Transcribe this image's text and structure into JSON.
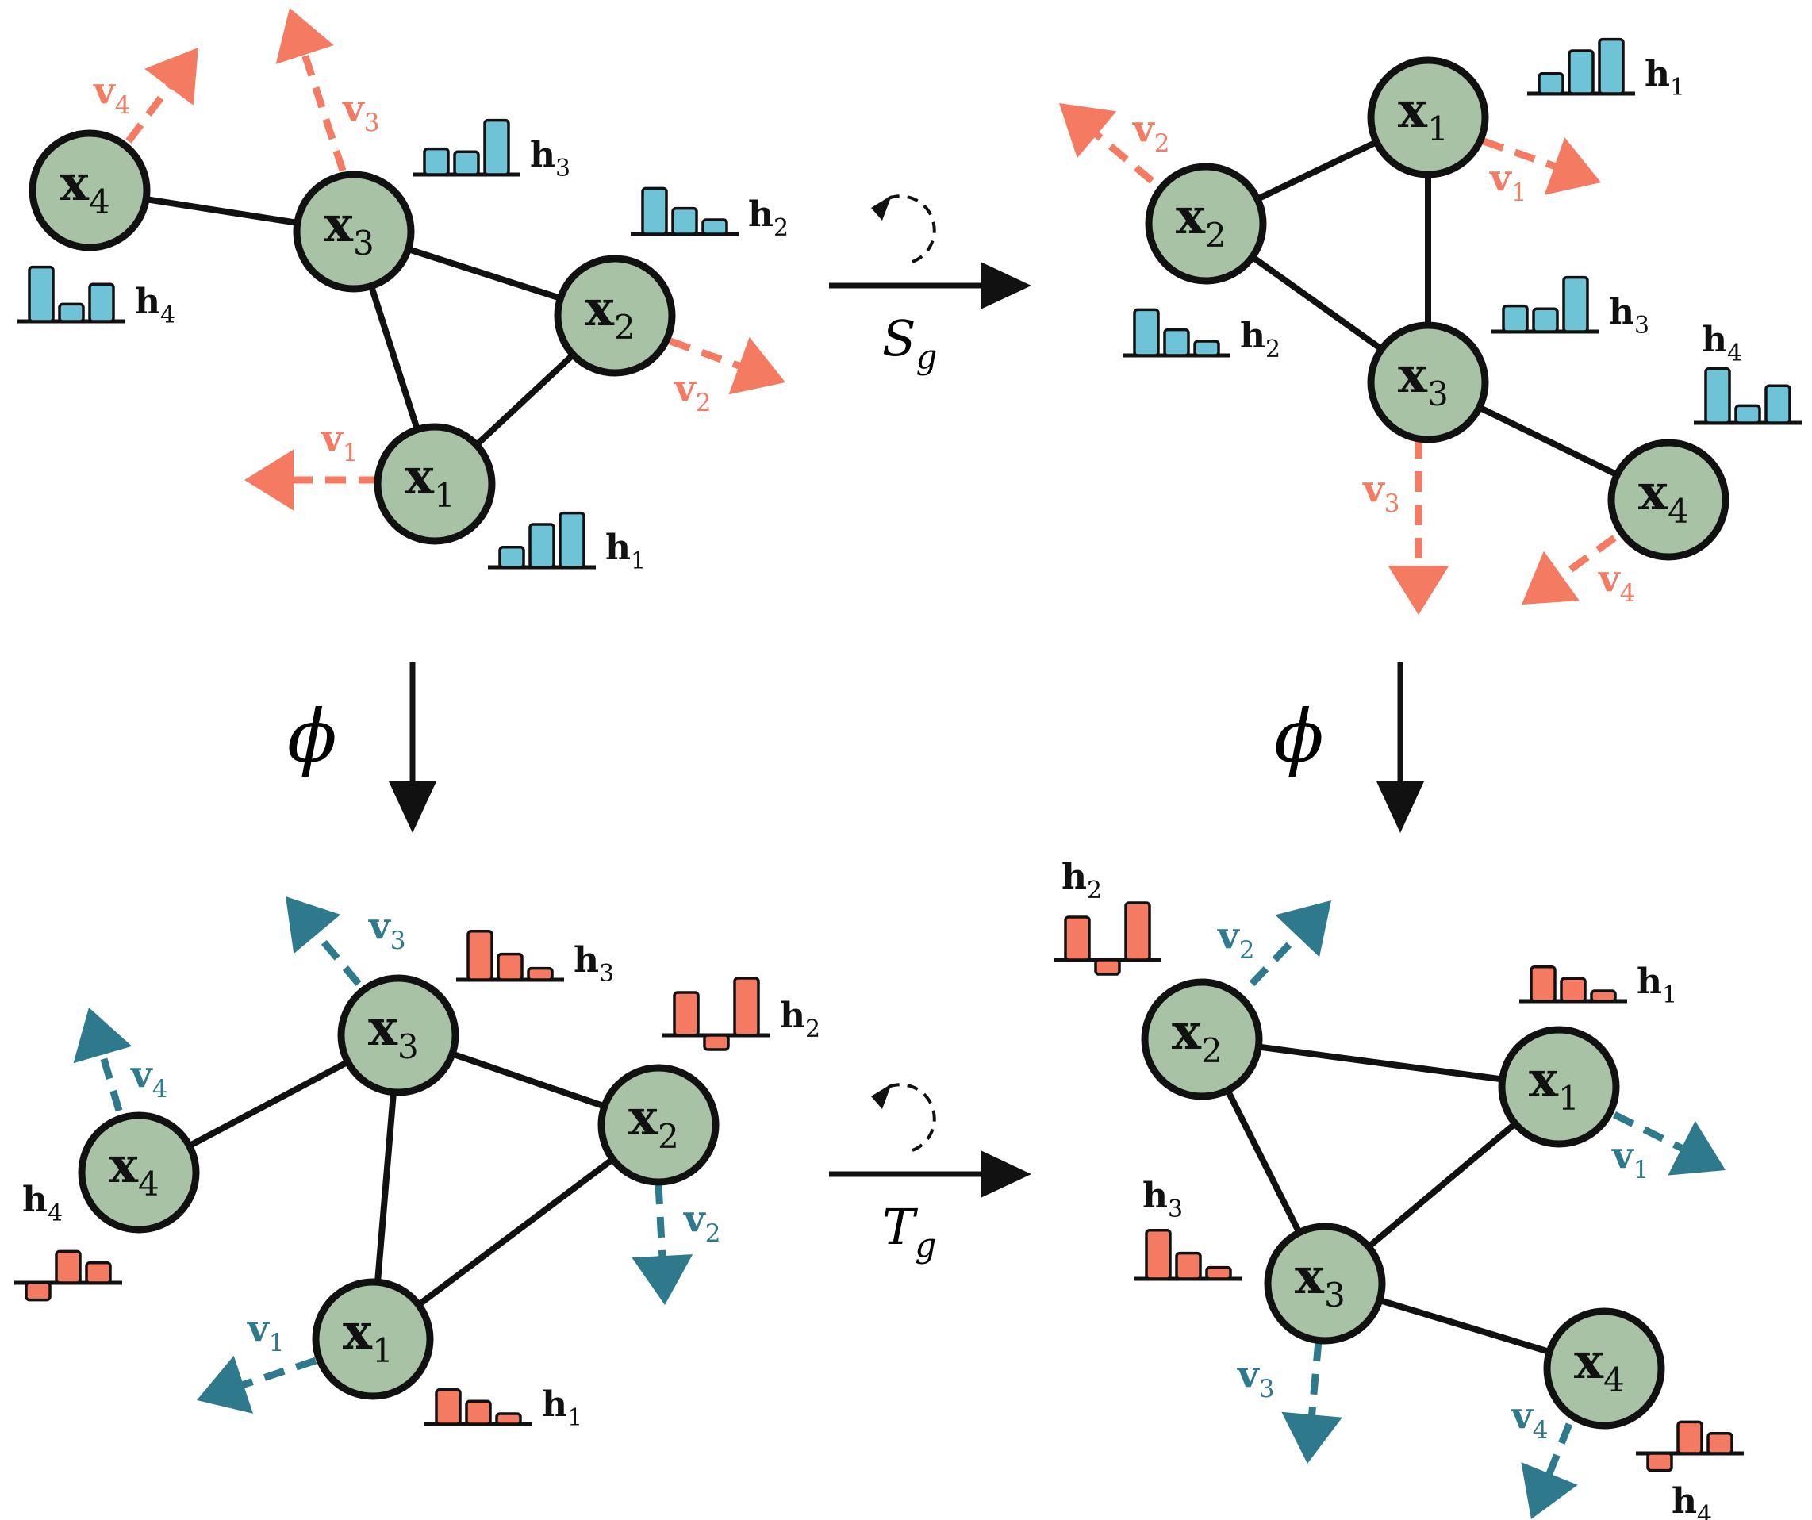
{
  "colors": {
    "node_fill": "#a8c2a5",
    "input_vector": "#f47a62",
    "output_vector": "#2e7a8c",
    "input_hist": "#6ec4d6",
    "output_hist": "#f47a62",
    "edge": "#111111"
  },
  "transforms": {
    "input": "S",
    "input_sub": "g",
    "output": "T",
    "output_sub": "g",
    "map": "ϕ"
  },
  "labels": {
    "node_base": "x",
    "vector_base": "v",
    "hist_base": "h"
  },
  "panels": [
    {
      "id": "input-original",
      "vector_color": "input_vector",
      "hist_color": "input_hist",
      "nodes": [
        {
          "i": "1",
          "hist": [
            0.35,
            0.75,
            0.95
          ]
        },
        {
          "i": "2",
          "hist": [
            0.8,
            0.45,
            0.25
          ]
        },
        {
          "i": "3",
          "hist": [
            0.45,
            0.4,
            0.95
          ]
        },
        {
          "i": "4",
          "hist": [
            0.95,
            0.3,
            0.65
          ]
        }
      ]
    },
    {
      "id": "input-transformed",
      "vector_color": "input_vector",
      "hist_color": "input_hist",
      "nodes": [
        {
          "i": "1",
          "hist": [
            0.35,
            0.75,
            0.95
          ]
        },
        {
          "i": "2",
          "hist": [
            0.8,
            0.45,
            0.25
          ]
        },
        {
          "i": "3",
          "hist": [
            0.45,
            0.4,
            0.95
          ]
        },
        {
          "i": "4",
          "hist": [
            0.95,
            0.3,
            0.65
          ]
        }
      ]
    },
    {
      "id": "output-original",
      "vector_color": "output_vector",
      "hist_color": "output_hist",
      "nodes": [
        {
          "i": "1",
          "hist": [
            0.6,
            0.4,
            0.18
          ]
        },
        {
          "i": "2",
          "hist": [
            0.75,
            -0.25,
            1.0
          ]
        },
        {
          "i": "3",
          "hist": [
            0.85,
            0.45,
            0.2
          ]
        },
        {
          "i": "4",
          "hist": [
            -0.3,
            0.55,
            0.35
          ]
        }
      ]
    },
    {
      "id": "output-transformed",
      "vector_color": "output_vector",
      "hist_color": "output_hist",
      "nodes": [
        {
          "i": "1",
          "hist": [
            0.6,
            0.4,
            0.18
          ]
        },
        {
          "i": "2",
          "hist": [
            0.75,
            -0.25,
            1.0
          ]
        },
        {
          "i": "3",
          "hist": [
            0.85,
            0.45,
            0.2
          ]
        },
        {
          "i": "4",
          "hist": [
            -0.3,
            0.55,
            0.35
          ]
        }
      ]
    }
  ]
}
